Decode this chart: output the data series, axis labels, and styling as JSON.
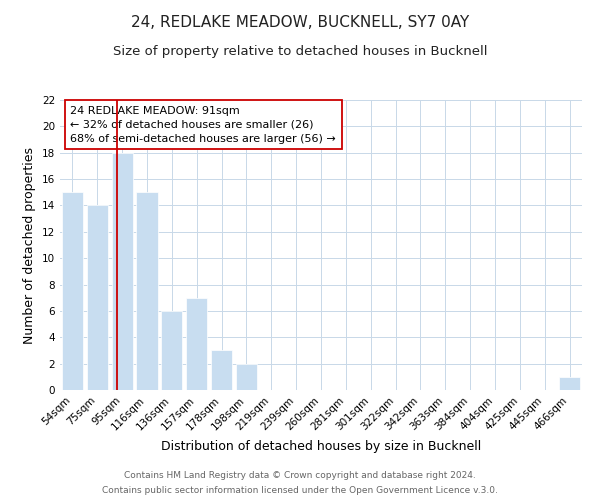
{
  "title": "24, REDLAKE MEADOW, BUCKNELL, SY7 0AY",
  "subtitle": "Size of property relative to detached houses in Bucknell",
  "xlabel": "Distribution of detached houses by size in Bucknell",
  "ylabel": "Number of detached properties",
  "bar_color": "#c8ddf0",
  "bar_edge_color": "#ffffff",
  "categories": [
    "54sqm",
    "75sqm",
    "95sqm",
    "116sqm",
    "136sqm",
    "157sqm",
    "178sqm",
    "198sqm",
    "219sqm",
    "239sqm",
    "260sqm",
    "281sqm",
    "301sqm",
    "322sqm",
    "342sqm",
    "363sqm",
    "384sqm",
    "404sqm",
    "425sqm",
    "445sqm",
    "466sqm"
  ],
  "values": [
    15,
    14,
    18,
    15,
    6,
    7,
    3,
    2,
    0,
    0,
    0,
    0,
    0,
    0,
    0,
    0,
    0,
    0,
    0,
    0,
    1
  ],
  "ylim": [
    0,
    22
  ],
  "yticks": [
    0,
    2,
    4,
    6,
    8,
    10,
    12,
    14,
    16,
    18,
    20,
    22
  ],
  "vline_color": "#cc0000",
  "annotation_line1": "24 REDLAKE MEADOW: 91sqm",
  "annotation_line2": "← 32% of detached houses are smaller (26)",
  "annotation_line3": "68% of semi-detached houses are larger (56) →",
  "footer_line1": "Contains HM Land Registry data © Crown copyright and database right 2024.",
  "footer_line2": "Contains public sector information licensed under the Open Government Licence v.3.0.",
  "background_color": "#ffffff",
  "grid_color": "#c8d8e8",
  "title_fontsize": 11,
  "subtitle_fontsize": 9.5,
  "axis_label_fontsize": 9,
  "tick_fontsize": 7.5,
  "annotation_fontsize": 8,
  "footer_fontsize": 6.5
}
